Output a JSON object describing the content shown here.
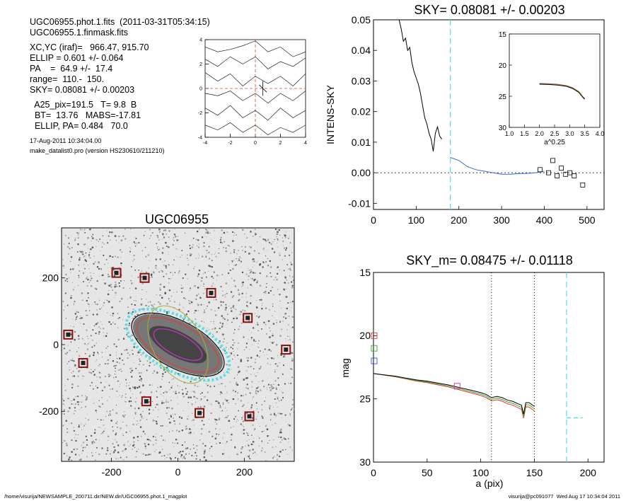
{
  "header": {
    "line1": "UGC06955.phot.1.fits  (2011-03-31T05:34:15)",
    "line2": "UGC06955.1.finmask.fits",
    "line3": "XC,YC (iraf)=   966.47, 915.70",
    "line4": "ELLIP = 0.601 +/- 0.064",
    "line5": "PA    =  64.9 +/-  17.4",
    "line6": "range=  110.-  150.",
    "line7": "SKY= 0.08081 +/- 0.00203",
    "line8": "  A25_pix=191.5   T= 9.8  B",
    "line9": "  BT=  13.76   MABS=-17.81",
    "line10": "  ELLIP, PA= 0.484   70.0",
    "date": "17-Aug-2011 10:34:04.00",
    "program": "make_datalist0.pro (version HS230610/211210)"
  },
  "footer": {
    "left": "/home/visurija/NEWSAMPLE_200711.dir/NEW.dir/UGC06955.phot.1_magplot",
    "right": "visurija@pc091077  Wed Aug 17 10:34:04 2011"
  },
  "chart_data": [
    {
      "type": "contour",
      "name_id": "centroid-contour",
      "xlim": [
        -4,
        4
      ],
      "ylim": [
        -4,
        4
      ],
      "xticks": [
        "-4",
        "-2",
        "0",
        "2",
        "4"
      ],
      "yticks": [
        "-4",
        "-2",
        "0",
        "2",
        "4"
      ]
    },
    {
      "type": "line",
      "name_id": "sky-profile",
      "title": "SKY= 0.08081 +/- 0.00203",
      "ylabel": "INTENS-SKY",
      "xlim": [
        0,
        540
      ],
      "ylim": [
        -0.012,
        0.05
      ],
      "xticks": [
        "0",
        "100",
        "200",
        "300",
        "400",
        "500"
      ],
      "yticks": [
        "-0.01",
        "0.00",
        "0.01",
        "0.02",
        "0.03",
        "0.04",
        "0.05"
      ],
      "sky_marker_x": 180,
      "series": [
        {
          "values": [
            [
              60,
              0.05
            ],
            [
              65,
              0.047
            ],
            [
              70,
              0.043
            ],
            [
              75,
              0.044
            ],
            [
              80,
              0.04
            ],
            [
              85,
              0.041
            ],
            [
              90,
              0.036
            ],
            [
              95,
              0.033
            ],
            [
              100,
              0.031
            ],
            [
              105,
              0.029
            ],
            [
              110,
              0.026
            ],
            [
              115,
              0.022
            ],
            [
              120,
              0.018
            ],
            [
              125,
              0.016
            ],
            [
              130,
              0.013
            ],
            [
              135,
              0.011
            ],
            [
              140,
              0.007
            ],
            [
              145,
              0.013
            ],
            [
              150,
              0.015
            ],
            [
              155,
              0.012
            ],
            [
              160,
              0.011
            ]
          ]
        },
        {
          "values": [
            [
              180,
              0.005
            ],
            [
              200,
              0.004
            ],
            [
              220,
              0.002
            ],
            [
              240,
              0.001
            ],
            [
              260,
              0.0005
            ],
            [
              280,
              0.0
            ],
            [
              300,
              -0.0005
            ],
            [
              320,
              -0.0005
            ],
            [
              340,
              -0.0003
            ],
            [
              360,
              -0.0002
            ],
            [
              380,
              0.0
            ],
            [
              400,
              0.0005
            ]
          ]
        }
      ],
      "points": [
        [
          390,
          0.001
        ],
        [
          410,
          0.0
        ],
        [
          420,
          0.004
        ],
        [
          430,
          -0.001
        ],
        [
          440,
          0.0015
        ],
        [
          450,
          -0.0005
        ],
        [
          460,
          0.0
        ],
        [
          470,
          -0.001
        ],
        [
          490,
          -0.004
        ]
      ],
      "inset": {
        "xlabel": "a^0.25",
        "xlim": [
          1.0,
          4.0
        ],
        "ylim": [
          15,
          30
        ],
        "xticks": [
          "1.0",
          "1.5",
          "2.0",
          "2.5",
          "3.0",
          "3.5",
          "4.0"
        ],
        "yticks": [
          "15",
          "20",
          "25",
          "30"
        ],
        "values": [
          [
            2.0,
            23.0
          ],
          [
            2.3,
            23.05
          ],
          [
            2.6,
            23.15
          ],
          [
            2.9,
            23.35
          ],
          [
            3.1,
            23.7
          ],
          [
            3.3,
            24.3
          ],
          [
            3.45,
            25.2
          ],
          [
            3.5,
            25.4
          ]
        ]
      }
    },
    {
      "type": "image",
      "name_id": "galaxy-image",
      "title": "UGC06955",
      "xlim": [
        -350,
        350
      ],
      "ylim": [
        -350,
        350
      ],
      "xticks": [
        "-200",
        "0",
        "200"
      ],
      "yticks": [
        "-200",
        "0",
        "200"
      ],
      "masked_sources": [
        [
          -330,
          30
        ],
        [
          -185,
          215
        ],
        [
          -100,
          200
        ],
        [
          -285,
          -55
        ],
        [
          -95,
          -170
        ],
        [
          65,
          -205
        ],
        [
          100,
          155
        ],
        [
          215,
          -215
        ],
        [
          210,
          80
        ],
        [
          325,
          -15
        ]
      ]
    },
    {
      "type": "line",
      "name_id": "mag-profile",
      "title": "SKY_m=  0.08475 +/- 0.01118",
      "xlabel": "a (pix)",
      "ylabel": "mag",
      "xlim": [
        0,
        215
      ],
      "ylim": [
        15,
        30
      ],
      "xticks": [
        "0",
        "50",
        "100",
        "150",
        "200"
      ],
      "yticks": [
        "15",
        "20",
        "25",
        "30"
      ],
      "range_lines": [
        110,
        150
      ],
      "sky_line_x": 180,
      "series": [
        {
          "color": "#000000",
          "values": [
            [
              0,
              23.0
            ],
            [
              10,
              23.1
            ],
            [
              20,
              23.2
            ],
            [
              30,
              23.35
            ],
            [
              40,
              23.5
            ],
            [
              50,
              23.6
            ],
            [
              60,
              23.75
            ],
            [
              70,
              23.9
            ],
            [
              80,
              24.1
            ],
            [
              90,
              24.3
            ],
            [
              100,
              24.5
            ],
            [
              105,
              24.65
            ],
            [
              110,
              24.9
            ],
            [
              115,
              24.8
            ],
            [
              120,
              24.9
            ],
            [
              125,
              25.1
            ],
            [
              130,
              25.2
            ],
            [
              135,
              25.4
            ],
            [
              138,
              25.5
            ],
            [
              140,
              26.2
            ],
            [
              142,
              25.3
            ],
            [
              145,
              25.3
            ],
            [
              150,
              25.6
            ]
          ]
        }
      ],
      "sky_mag": 26.5
    }
  ]
}
